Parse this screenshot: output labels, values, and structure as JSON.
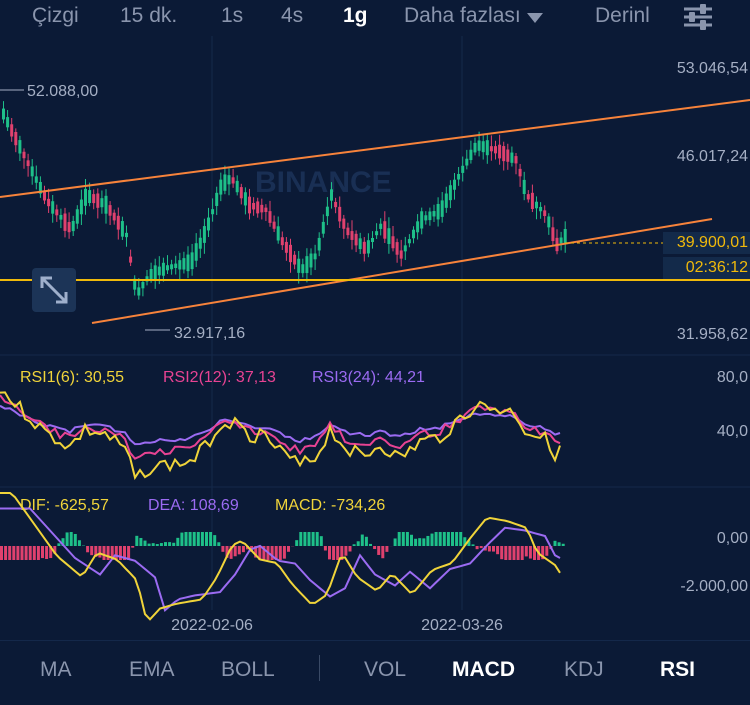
{
  "toolbar": {
    "items": [
      "Çizgi",
      "15 dk.",
      "1s",
      "4s",
      "1g"
    ],
    "active": "1g",
    "more_label": "Daha fazlası",
    "depth_label": "Derinlik"
  },
  "price_axis": {
    "labels": [
      "53.046,54",
      "46.017,24",
      "39.900,01",
      "31.958,62"
    ],
    "current_price": "39.900,01",
    "countdown": "02:36:12"
  },
  "annotations": {
    "high": "52.088,00",
    "low": "32.917,16"
  },
  "watermark": "BINANCE",
  "rsi": {
    "rsi1": "RSI1(6): 30,55",
    "rsi2": "RSI2(12): 37,13",
    "rsi3": "RSI3(24): 44,21",
    "axis": [
      "80,0",
      "40,0"
    ]
  },
  "macd": {
    "dif": "DIF: -625,57",
    "dea": "DEA: 108,69",
    "macd": "MACD: -734,26",
    "axis": [
      "0,00",
      "-2.000,00"
    ]
  },
  "dates": [
    "2022-02-06",
    "2022-03-26"
  ],
  "bottom_tabs": {
    "items": [
      "MA",
      "EMA",
      "BOLL",
      "VOL",
      "MACD",
      "KDJ",
      "RSI"
    ],
    "active": [
      "MACD",
      "RSI"
    ]
  },
  "colors": {
    "background": "#0b1a36",
    "up": "#1ec089",
    "down": "#e0416e",
    "trendline": "#f7833b",
    "support": "#f0b90b",
    "rsi1": "#f0d43a",
    "rsi2": "#e84393",
    "rsi3": "#9b6bf2",
    "dea": "#9b6bf2"
  }
}
